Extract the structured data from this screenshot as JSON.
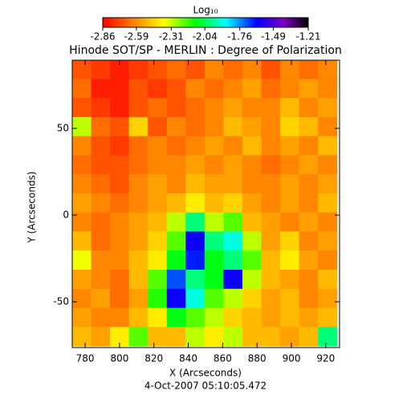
{
  "chart_data": {
    "type": "heatmap",
    "title": "Hinode SOT/SP - MERLIN : Degree of Polarization",
    "xlabel": "X (Arcseconds)",
    "ylabel": "Y (Arcseconds)",
    "caption": "4-Oct-2007 05:10:05.472",
    "colorbar": {
      "label": "Log₁₀",
      "lim": [
        -2.86,
        -1.21
      ],
      "ticks": [
        -2.86,
        -2.59,
        -2.31,
        -2.04,
        -1.76,
        -1.49,
        -1.21
      ]
    },
    "xlim": [
      772.5,
      928
    ],
    "ylim": [
      -76.4,
      89.3
    ],
    "xticks": [
      780,
      800,
      820,
      840,
      860,
      880,
      900,
      920
    ],
    "yticks": [
      -50,
      0,
      50
    ],
    "x": [
      778,
      789,
      800,
      811,
      822,
      833,
      844,
      855,
      866,
      877,
      888,
      899,
      910,
      921
    ],
    "y": [
      84,
      73,
      62,
      51,
      40,
      29,
      18,
      7,
      -4,
      -15,
      -26,
      -37,
      -48,
      -59,
      -70
    ],
    "z": [
      [
        -2.7,
        -2.75,
        -2.8,
        -2.75,
        -2.7,
        -2.65,
        -2.7,
        -2.6,
        -2.65,
        -2.6,
        -2.7,
        -2.6,
        -2.65,
        -2.6
      ],
      [
        -2.65,
        -2.8,
        -2.8,
        -2.7,
        -2.75,
        -2.7,
        -2.6,
        -2.65,
        -2.6,
        -2.55,
        -2.65,
        -2.6,
        -2.55,
        -2.6
      ],
      [
        -2.7,
        -2.75,
        -2.8,
        -2.7,
        -2.65,
        -2.7,
        -2.65,
        -2.6,
        -2.55,
        -2.6,
        -2.6,
        -2.5,
        -2.6,
        -2.55
      ],
      [
        -2.3,
        -2.65,
        -2.7,
        -2.45,
        -2.7,
        -2.6,
        -2.65,
        -2.6,
        -2.5,
        -2.55,
        -2.6,
        -2.45,
        -2.5,
        -2.6
      ],
      [
        -2.6,
        -2.7,
        -2.75,
        -2.65,
        -2.6,
        -2.65,
        -2.6,
        -2.55,
        -2.6,
        -2.5,
        -2.6,
        -2.55,
        -2.6,
        -2.5
      ],
      [
        -2.65,
        -2.7,
        -2.7,
        -2.65,
        -2.6,
        -2.6,
        -2.55,
        -2.6,
        -2.55,
        -2.6,
        -2.65,
        -2.6,
        -2.55,
        -2.6
      ],
      [
        -2.6,
        -2.65,
        -2.7,
        -2.6,
        -2.55,
        -2.6,
        -2.5,
        -2.55,
        -2.55,
        -2.6,
        -2.6,
        -2.55,
        -2.6,
        -2.55
      ],
      [
        -2.55,
        -2.6,
        -2.65,
        -2.6,
        -2.55,
        -2.5,
        -2.4,
        -2.5,
        -2.45,
        -2.55,
        -2.6,
        -2.55,
        -2.6,
        -2.5
      ],
      [
        -2.6,
        -2.65,
        -2.6,
        -2.55,
        -2.5,
        -2.3,
        -2.0,
        -2.3,
        -2.2,
        -2.5,
        -2.55,
        -2.6,
        -2.55,
        -2.6
      ],
      [
        -2.5,
        -2.65,
        -2.6,
        -2.55,
        -2.45,
        -2.2,
        -1.6,
        -2.0,
        -1.9,
        -2.3,
        -2.55,
        -2.45,
        -2.6,
        -2.55
      ],
      [
        -2.35,
        -2.6,
        -2.6,
        -2.5,
        -2.4,
        -2.1,
        -1.65,
        -2.1,
        -2.0,
        -2.2,
        -2.5,
        -2.4,
        -2.55,
        -2.6
      ],
      [
        -2.55,
        -2.6,
        -2.65,
        -2.5,
        -2.2,
        -1.7,
        -2.0,
        -2.1,
        -1.6,
        -2.3,
        -2.5,
        -2.55,
        -2.6,
        -2.5
      ],
      [
        -2.6,
        -2.55,
        -2.65,
        -2.55,
        -2.15,
        -1.6,
        -1.9,
        -2.2,
        -2.3,
        -2.45,
        -2.55,
        -2.5,
        -2.6,
        -2.55
      ],
      [
        -2.55,
        -2.6,
        -2.6,
        -2.5,
        -2.4,
        -2.1,
        -2.2,
        -2.3,
        -2.45,
        -2.5,
        -2.55,
        -2.5,
        -2.55,
        -2.5
      ],
      [
        -2.5,
        -2.55,
        -2.4,
        -2.2,
        -2.5,
        -2.5,
        -2.3,
        -2.4,
        -2.3,
        -2.5,
        -2.5,
        -2.55,
        -2.5,
        -2.0
      ]
    ]
  }
}
